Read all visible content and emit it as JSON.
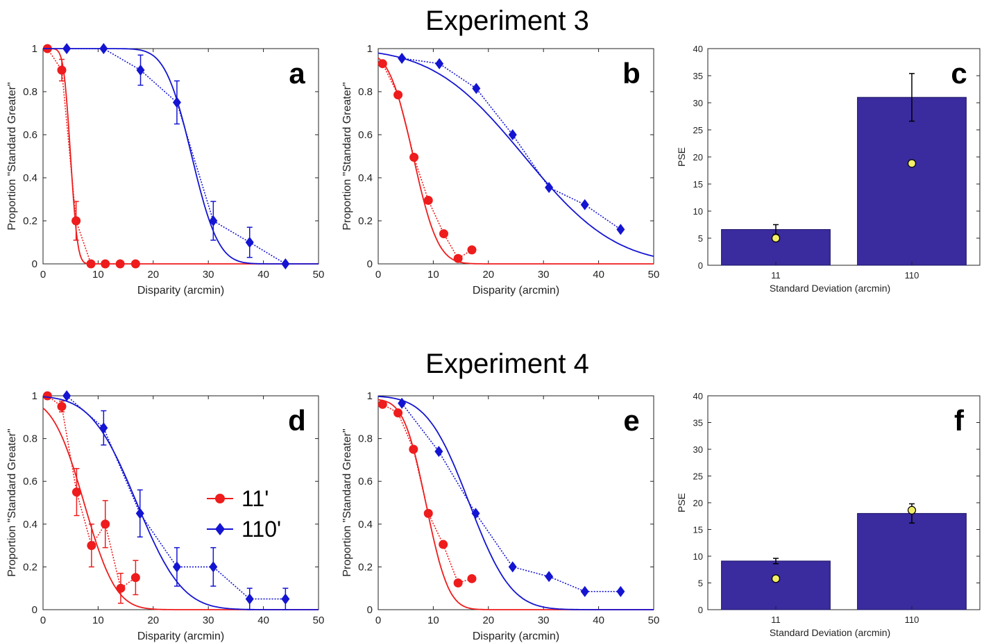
{
  "figure": {
    "titles": [
      "Experiment 3",
      "Experiment 4"
    ]
  },
  "chart_data": [
    {
      "id": "a",
      "type": "line",
      "xlabel": "Disparity (arcmin)",
      "ylabel": "Proportion \"Standard Greater\"",
      "xlim": [
        0,
        50
      ],
      "ylim": [
        0,
        1
      ],
      "xticks": [
        0,
        10,
        20,
        30,
        40,
        50
      ],
      "yticks": [
        0,
        0.2,
        0.4,
        0.6,
        0.8,
        1
      ],
      "series": [
        {
          "color": "#ee1c1c",
          "marker": "circle",
          "x": [
            0.8,
            3.4,
            6.0,
            8.7,
            11.3,
            14.0,
            16.8
          ],
          "y": [
            1.0,
            0.9,
            0.2,
            0.0,
            0.0,
            0.0,
            0.0
          ],
          "err": [
            0,
            0.05,
            0.09,
            0,
            0,
            0,
            0
          ],
          "fit": {
            "type": "cdf",
            "mu": 5.0,
            "sigma": 1.0,
            "amp": 1.0
          }
        },
        {
          "color": "#1414d2",
          "marker": "diamond",
          "x": [
            4.3,
            11.0,
            17.7,
            24.3,
            30.9,
            37.5,
            44.0
          ],
          "y": [
            1.0,
            1.0,
            0.9,
            0.75,
            0.2,
            0.1,
            0.0
          ],
          "err": [
            0,
            0,
            0.07,
            0.1,
            0.09,
            0.07,
            0
          ],
          "fit": {
            "type": "cdf",
            "mu": 27.0,
            "sigma": 3.8,
            "amp": 1.0
          }
        }
      ]
    },
    {
      "id": "b",
      "type": "line",
      "xlabel": "Disparity (arcmin)",
      "ylabel": "Proportion \"Standard Greater\"",
      "xlim": [
        0,
        50
      ],
      "ylim": [
        0,
        1
      ],
      "xticks": [
        0,
        10,
        20,
        30,
        40,
        50
      ],
      "yticks": [
        0,
        0.2,
        0.4,
        0.6,
        0.8,
        1
      ],
      "series": [
        {
          "color": "#ee1c1c",
          "marker": "circle",
          "x": [
            0.8,
            3.6,
            6.5,
            9.1,
            11.9,
            14.5,
            17.0
          ],
          "y": [
            0.93,
            0.785,
            0.495,
            0.295,
            0.14,
            0.025,
            0.065
          ],
          "err": [
            0,
            0,
            0,
            0,
            0,
            0,
            0
          ],
          "fit": {
            "type": "cdf",
            "mu": 6.4,
            "sigma": 3.5,
            "amp": 0.99
          }
        },
        {
          "color": "#1414d2",
          "marker": "diamond",
          "x": [
            4.3,
            11.1,
            17.8,
            24.4,
            31.0,
            37.5,
            44.0
          ],
          "y": [
            0.955,
            0.93,
            0.815,
            0.6,
            0.355,
            0.275,
            0.16
          ],
          "err": [
            0,
            0,
            0,
            0,
            0,
            0,
            0
          ],
          "fit": {
            "type": "cdf",
            "mu": 26.5,
            "sigma": 13.0,
            "amp": 1.0
          }
        }
      ]
    },
    {
      "id": "c",
      "type": "bar",
      "xlabel": "Standard Deviation (arcmin)",
      "ylabel": "PSE",
      "categories": [
        "11",
        "110"
      ],
      "values": [
        6.6,
        31.0
      ],
      "bar_err": [
        0.9,
        4.4
      ],
      "points": [
        5.0,
        18.8
      ],
      "ylim": [
        0,
        40
      ],
      "yticks": [
        0,
        5,
        10,
        15,
        20,
        25,
        30,
        35,
        40
      ]
    },
    {
      "id": "d",
      "type": "line",
      "xlabel": "Disparity (arcmin)",
      "ylabel": "Proportion \"Standard Greater\"",
      "xlim": [
        0,
        50
      ],
      "ylim": [
        0,
        1
      ],
      "xticks": [
        0,
        10,
        20,
        30,
        40,
        50
      ],
      "yticks": [
        0,
        0.2,
        0.4,
        0.6,
        0.8,
        1
      ],
      "series": [
        {
          "name": "11'",
          "color": "#ee1c1c",
          "marker": "circle",
          "x": [
            0.8,
            3.4,
            6.1,
            8.8,
            11.3,
            14.1,
            16.8
          ],
          "y": [
            1.0,
            0.95,
            0.55,
            0.3,
            0.4,
            0.1,
            0.15
          ],
          "err": [
            0,
            0.025,
            0.11,
            0.1,
            0.11,
            0.07,
            0.08
          ],
          "fit": {
            "type": "cdf",
            "mu": 7.5,
            "sigma": 4.5,
            "amp": 0.99
          }
        },
        {
          "name": "110'",
          "color": "#1414d2",
          "marker": "diamond",
          "x": [
            4.3,
            11.0,
            17.6,
            24.3,
            30.9,
            37.5,
            44.0
          ],
          "y": [
            1.0,
            0.85,
            0.45,
            0.2,
            0.2,
            0.05,
            0.05
          ],
          "err": [
            0,
            0.08,
            0.11,
            0.09,
            0.09,
            0.05,
            0.05
          ],
          "fit": {
            "type": "cdf",
            "mu": 17.0,
            "sigma": 6.5,
            "amp": 1.0
          }
        }
      ]
    },
    {
      "id": "e",
      "type": "line",
      "xlabel": "Disparity (arcmin)",
      "ylabel": "Proportion \"Standard Greater\"",
      "xlim": [
        0,
        50
      ],
      "ylim": [
        0,
        1
      ],
      "xticks": [
        0,
        10,
        20,
        30,
        40,
        50
      ],
      "yticks": [
        0,
        0.2,
        0.4,
        0.6,
        0.8,
        1
      ],
      "series": [
        {
          "color": "#ee1c1c",
          "marker": "circle",
          "x": [
            0.8,
            3.6,
            6.4,
            9.1,
            11.8,
            14.5,
            17.0
          ],
          "y": [
            0.96,
            0.92,
            0.75,
            0.45,
            0.305,
            0.125,
            0.145
          ],
          "err": [
            0,
            0,
            0,
            0,
            0,
            0,
            0
          ],
          "fit": {
            "type": "cdf",
            "mu": 8.7,
            "sigma": 3.2,
            "amp": 0.985
          }
        },
        {
          "color": "#1414d2",
          "marker": "diamond",
          "x": [
            4.3,
            11.0,
            17.7,
            24.4,
            31.0,
            37.5,
            44.0
          ],
          "y": [
            0.965,
            0.74,
            0.45,
            0.2,
            0.155,
            0.085,
            0.085
          ],
          "err": [
            0,
            0,
            0,
            0,
            0,
            0,
            0
          ],
          "fit": {
            "type": "cdf",
            "mu": 16.5,
            "sigma": 6.0,
            "amp": 1.0
          }
        }
      ]
    },
    {
      "id": "f",
      "type": "bar",
      "xlabel": "Standard Deviation (arcmin)",
      "ylabel": "PSE",
      "categories": [
        "11",
        "110"
      ],
      "values": [
        9.1,
        18.0
      ],
      "bar_err": [
        0.5,
        1.8
      ],
      "points": [
        5.8,
        18.6
      ],
      "ylim": [
        0,
        40
      ],
      "yticks": [
        0,
        5,
        10,
        15,
        20,
        25,
        30,
        35,
        40
      ]
    }
  ]
}
